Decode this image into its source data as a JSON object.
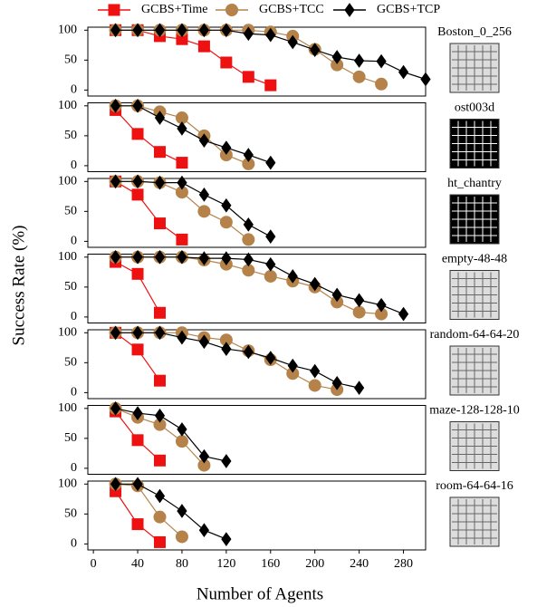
{
  "chart_data": {
    "type": "line",
    "xlabel": "Number of Agents",
    "ylabel": "Success Rate (%)",
    "xlim": [
      -5,
      300
    ],
    "xticks": [
      0,
      40,
      80,
      120,
      160,
      200,
      240,
      280
    ],
    "series": [
      {
        "name": "GCBS+Time",
        "color": "#ee1111",
        "marker": "square"
      },
      {
        "name": "GCBS+TCC",
        "color": "#b5834a",
        "marker": "circle"
      },
      {
        "name": "GCBS+TCP",
        "color": "#000000",
        "marker": "diamond"
      }
    ],
    "panels": [
      {
        "title": "Boston_0_256",
        "ylim": [
          -10,
          105
        ],
        "yticks": [
          0,
          50,
          100
        ],
        "lines": [
          {
            "x": [
              20,
              40,
              60,
              80,
              100,
              120,
              140,
              160
            ],
            "values": [
              100,
              100,
              90,
              85,
              73,
              46,
              22,
              8
            ]
          },
          {
            "x": [
              20,
              40,
              60,
              80,
              100,
              120,
              140,
              160,
              180,
              200,
              220,
              240,
              260
            ],
            "values": [
              100,
              100,
              100,
              100,
              100,
              100,
              100,
              97,
              90,
              68,
              42,
              22,
              10
            ]
          },
          {
            "x": [
              20,
              40,
              60,
              80,
              100,
              120,
              140,
              160,
              180,
              200,
              220,
              240,
              260,
              280,
              300
            ],
            "values": [
              100,
              100,
              100,
              100,
              100,
              100,
              94,
              92,
              80,
              67,
              55,
              49,
              48,
              30,
              18
            ]
          }
        ]
      },
      {
        "title": "ost003d",
        "ylim": [
          -10,
          105
        ],
        "yticks": [
          0,
          50,
          100
        ],
        "lines": [
          {
            "x": [
              20,
              40,
              60,
              80
            ],
            "values": [
              93,
              53,
              23,
              5
            ]
          },
          {
            "x": [
              20,
              40,
              60,
              80,
              100,
              120,
              140
            ],
            "values": [
              100,
              100,
              90,
              80,
              50,
              18,
              3
            ]
          },
          {
            "x": [
              20,
              40,
              60,
              80,
              100,
              120,
              140,
              160
            ],
            "values": [
              100,
              100,
              80,
              62,
              42,
              30,
              18,
              5
            ]
          }
        ]
      },
      {
        "title": "ht_chantry",
        "ylim": [
          -10,
          105
        ],
        "yticks": [
          0,
          50,
          100
        ],
        "lines": [
          {
            "x": [
              20,
              40,
              60,
              80
            ],
            "values": [
              100,
              78,
              30,
              3
            ]
          },
          {
            "x": [
              20,
              40,
              60,
              80,
              100,
              120,
              140
            ],
            "values": [
              100,
              100,
              98,
              82,
              50,
              32,
              3
            ]
          },
          {
            "x": [
              20,
              40,
              60,
              80,
              100,
              120,
              140,
              160
            ],
            "values": [
              100,
              100,
              98,
              98,
              78,
              60,
              28,
              8
            ]
          }
        ]
      },
      {
        "title": "empty-48-48",
        "ylim": [
          -10,
          105
        ],
        "yticks": [
          0,
          50,
          100
        ],
        "lines": [
          {
            "x": [
              20,
              40,
              60
            ],
            "values": [
              92,
              72,
              7
            ]
          },
          {
            "x": [
              20,
              40,
              60,
              80,
              100,
              120,
              140,
              160,
              180,
              200,
              220,
              240,
              260
            ],
            "values": [
              100,
              100,
              100,
              100,
              95,
              88,
              78,
              68,
              60,
              50,
              25,
              8,
              5
            ]
          },
          {
            "x": [
              20,
              40,
              60,
              80,
              100,
              120,
              140,
              160,
              180,
              200,
              220,
              240,
              260,
              280
            ],
            "values": [
              100,
              100,
              100,
              100,
              98,
              98,
              96,
              88,
              68,
              55,
              37,
              28,
              20,
              5
            ]
          }
        ]
      },
      {
        "title": "random-64-64-20",
        "ylim": [
          -10,
          105
        ],
        "yticks": [
          0,
          50,
          100
        ],
        "lines": [
          {
            "x": [
              20,
              40,
              60
            ],
            "values": [
              100,
              72,
              20
            ]
          },
          {
            "x": [
              20,
              40,
              60,
              80,
              100,
              120,
              140,
              160,
              180,
              200,
              220
            ],
            "values": [
              100,
              100,
              100,
              100,
              92,
              88,
              70,
              55,
              32,
              12,
              5
            ]
          },
          {
            "x": [
              20,
              40,
              60,
              80,
              100,
              120,
              140,
              160,
              180,
              200,
              220,
              240
            ],
            "values": [
              100,
              100,
              100,
              92,
              85,
              73,
              68,
              58,
              45,
              36,
              16,
              8
            ]
          }
        ]
      },
      {
        "title": "maze-128-128-10",
        "ylim": [
          -10,
          105
        ],
        "yticks": [
          0,
          50,
          100
        ],
        "lines": [
          {
            "x": [
              20,
              40,
              60
            ],
            "values": [
              95,
              47,
              13
            ]
          },
          {
            "x": [
              20,
              40,
              60,
              80,
              100
            ],
            "values": [
              100,
              85,
              73,
              45,
              5
            ]
          },
          {
            "x": [
              20,
              40,
              60,
              80,
              100,
              120
            ],
            "values": [
              100,
              92,
              88,
              65,
              20,
              12
            ]
          }
        ]
      },
      {
        "title": "room-64-64-16",
        "ylim": [
          -10,
          105
        ],
        "yticks": [
          0,
          50,
          100
        ],
        "lines": [
          {
            "x": [
              20,
              40,
              60
            ],
            "values": [
              88,
              33,
              3
            ]
          },
          {
            "x": [
              20,
              40,
              60,
              80
            ],
            "values": [
              100,
              97,
              45,
              12
            ]
          },
          {
            "x": [
              20,
              40,
              60,
              80,
              100,
              120
            ],
            "values": [
              100,
              100,
              80,
              55,
              23,
              8
            ]
          }
        ]
      }
    ]
  }
}
